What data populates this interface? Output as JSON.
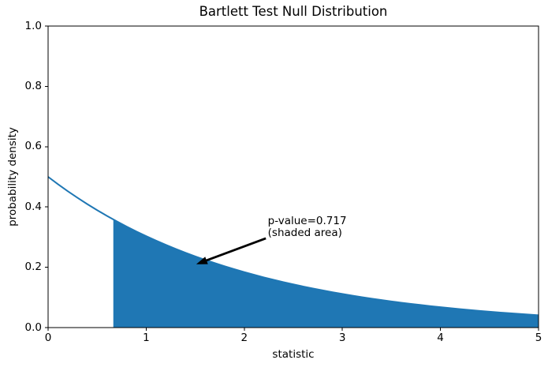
{
  "figure": {
    "background": "#ffffff",
    "text_color": "#000000",
    "axis_color": "#000000"
  },
  "chart_data": {
    "type": "area",
    "title": "Bartlett Test Null Distribution",
    "xlabel": "statistic",
    "ylabel": "probability density",
    "xlim": [
      0,
      5
    ],
    "ylim": [
      0,
      1
    ],
    "grid": false,
    "legend": null,
    "x_tick_values": [
      0,
      1,
      2,
      3,
      4,
      5
    ],
    "x_tick_labels": [
      "0",
      "1",
      "2",
      "3",
      "4",
      "5"
    ],
    "y_tick_values": [
      0.0,
      0.2,
      0.4,
      0.6,
      0.8,
      1.0
    ],
    "y_tick_labels": [
      "0.0",
      "0.2",
      "0.4",
      "0.6",
      "0.8",
      "1.0"
    ],
    "series": [
      {
        "name": "null-distribution-pdf",
        "type": "line",
        "color": "#1f77b4",
        "line_width": 2,
        "x": [
          0.0,
          0.1,
          0.2,
          0.3,
          0.4,
          0.5,
          0.6,
          0.7,
          0.8,
          0.9,
          1.0,
          1.1,
          1.2,
          1.3,
          1.4,
          1.5,
          1.6,
          1.7,
          1.8,
          1.9,
          2.0,
          2.1,
          2.2,
          2.3,
          2.4,
          2.5,
          2.6,
          2.7,
          2.8,
          2.9,
          3.0,
          3.1,
          3.2,
          3.3,
          3.4,
          3.5,
          3.6,
          3.7,
          3.8,
          3.9,
          4.0,
          4.1,
          4.2,
          4.3,
          4.4,
          4.5,
          4.6,
          4.7,
          4.8,
          4.9,
          5.0
        ],
        "y": [
          0.5,
          0.4756,
          0.4524,
          0.4304,
          0.4094,
          0.3894,
          0.3704,
          0.3523,
          0.3352,
          0.3188,
          0.3033,
          0.2885,
          0.2744,
          0.261,
          0.2483,
          0.2362,
          0.2247,
          0.2137,
          0.2033,
          0.1934,
          0.1839,
          0.175,
          0.1664,
          0.1583,
          0.1506,
          0.1433,
          0.1363,
          0.1296,
          0.1233,
          0.1173,
          0.1116,
          0.1061,
          0.1009,
          0.096,
          0.0913,
          0.0869,
          0.0826,
          0.0786,
          0.0748,
          0.0711,
          0.0677,
          0.0644,
          0.0612,
          0.0582,
          0.0554,
          0.0527,
          0.0501,
          0.0477,
          0.0454,
          0.0431,
          0.041
        ]
      }
    ],
    "shaded_region": {
      "name": "p-value-area",
      "from_x": 0.665,
      "to_x": 5.0,
      "fill_color": "#1f77b4",
      "p_value": 0.717
    },
    "annotation": {
      "line1": "p-value=0.717",
      "line2": "(shaded area)",
      "text": "p-value=0.717\n(shaded area)",
      "text_xy": [
        2.24,
        0.372
      ],
      "arrow_tail_xy": [
        2.22,
        0.296
      ],
      "arrow_tip_xy": [
        1.51,
        0.21
      ],
      "arrow_color": "#000000"
    }
  }
}
